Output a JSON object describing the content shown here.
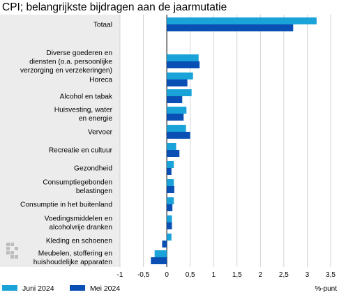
{
  "title": "CPI; belangrijkste bijdragen aan de jaarmutatie",
  "colors": {
    "series1": "#1aa3d9",
    "series2": "#0a4fb4",
    "label_panel": "#ececec",
    "grid": "#c8c8c8"
  },
  "chart_data": {
    "type": "bar",
    "orientation": "horizontal",
    "title": "CPI; belangrijkste bijdragen aan de jaarmutatie",
    "xlabel": "%-punt",
    "xlim": [
      -1,
      3.5
    ],
    "xticks": [
      "-1",
      "-0,5",
      "0",
      "0,5",
      "1",
      "1,5",
      "2",
      "2,5",
      "3",
      "3,5"
    ],
    "xtick_values": [
      -1,
      -0.5,
      0,
      0.5,
      1,
      1.5,
      2,
      2.5,
      3,
      3.5
    ],
    "grid": true,
    "legend_position": "bottom-left",
    "categories": [
      [
        "Totaal"
      ],
      [
        "Diverse goederen en",
        "diensten (o.a. persoonlijke",
        "verzorging en verzekeringen)"
      ],
      [
        "Horeca"
      ],
      [
        "Alcohol en tabak"
      ],
      [
        "Huisvesting, water",
        "en energie"
      ],
      [
        "Vervoer"
      ],
      [
        "Recreatie en cultuur"
      ],
      [
        "Gezondheid"
      ],
      [
        "Consumptiegebonden",
        "belastingen"
      ],
      [
        "Consumptie in het buitenland"
      ],
      [
        "Voedingsmiddelen en",
        "alcoholvrije dranken"
      ],
      [
        "Kleding en schoenen"
      ],
      [
        "Meubelen, stoffering en",
        "huishoudelijke apparaten"
      ]
    ],
    "series": [
      {
        "name": "Juni 2024",
        "values": [
          3.2,
          0.68,
          0.56,
          0.53,
          0.42,
          0.41,
          0.2,
          0.15,
          0.15,
          0.15,
          0.11,
          0.1,
          -0.26
        ]
      },
      {
        "name": "Mei 2024",
        "values": [
          2.7,
          0.7,
          0.44,
          0.33,
          0.36,
          0.5,
          0.27,
          0.1,
          0.16,
          0.12,
          0.11,
          -0.1,
          -0.34
        ]
      }
    ]
  }
}
